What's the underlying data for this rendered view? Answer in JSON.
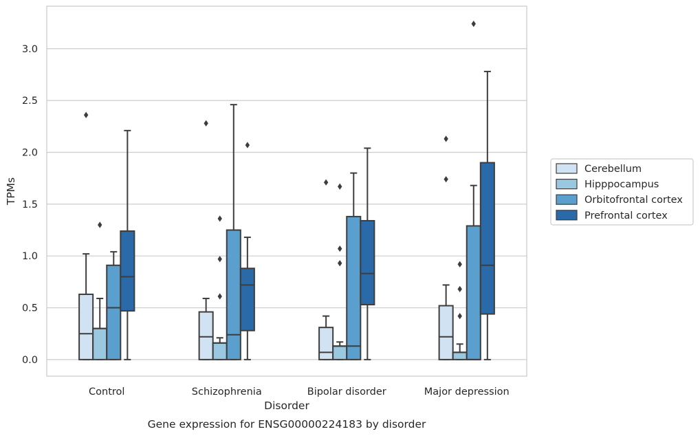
{
  "chart_data": {
    "type": "box",
    "xlabel": "Disorder",
    "ylabel": "TPMs",
    "caption": "Gene expression for ENSG00000224183 by disorder",
    "ylim": [
      -0.16,
      3.41
    ],
    "y_ticks": [
      {
        "value": 0.0,
        "label": "0.0"
      },
      {
        "value": 0.5,
        "label": "0.5"
      },
      {
        "value": 1.0,
        "label": "1.0"
      },
      {
        "value": 1.5,
        "label": "1.5"
      },
      {
        "value": 2.0,
        "label": "2.0"
      },
      {
        "value": 2.5,
        "label": "2.5"
      },
      {
        "value": 3.0,
        "label": "3.0"
      }
    ],
    "grid": "horizontal",
    "legend_position": "right",
    "categories": [
      "Control",
      "Schizophrenia",
      "Bipolar disorder",
      "Major depression"
    ],
    "series": [
      {
        "name": "Cerebellum",
        "color": "#d1e2f2",
        "boxes": [
          {
            "whislo": 0.0,
            "q1": 0.0,
            "med": 0.25,
            "q3": 0.63,
            "whishi": 1.02,
            "fliers": [
              2.36
            ]
          },
          {
            "whislo": 0.0,
            "q1": 0.0,
            "med": 0.22,
            "q3": 0.46,
            "whishi": 0.59,
            "fliers": [
              2.28
            ]
          },
          {
            "whislo": 0.0,
            "q1": 0.0,
            "med": 0.07,
            "q3": 0.31,
            "whishi": 0.42,
            "fliers": [
              1.71
            ]
          },
          {
            "whislo": 0.0,
            "q1": 0.0,
            "med": 0.22,
            "q3": 0.52,
            "whishi": 0.72,
            "fliers": [
              2.13,
              1.74
            ]
          }
        ]
      },
      {
        "name": "Hipppocampus",
        "color": "#9ac8e0",
        "boxes": [
          {
            "whislo": 0.0,
            "q1": 0.0,
            "med": 0.3,
            "q3": 0.3,
            "whishi": 0.59,
            "fliers": [
              1.3
            ]
          },
          {
            "whislo": 0.0,
            "q1": 0.0,
            "med": 0.16,
            "q3": 0.16,
            "whishi": 0.21,
            "fliers": [
              1.36,
              0.97,
              0.61
            ]
          },
          {
            "whislo": 0.0,
            "q1": 0.0,
            "med": 0.13,
            "q3": 0.13,
            "whishi": 0.17,
            "fliers": [
              1.67,
              1.07,
              0.93
            ]
          },
          {
            "whislo": 0.0,
            "q1": 0.0,
            "med": 0.07,
            "q3": 0.07,
            "whishi": 0.15,
            "fliers": [
              0.92,
              0.68,
              0.42
            ]
          }
        ]
      },
      {
        "name": "Orbitofrontal cortex",
        "color": "#5a9fcd",
        "boxes": [
          {
            "whislo": 0.0,
            "q1": 0.0,
            "med": 0.5,
            "q3": 0.91,
            "whishi": 1.04,
            "fliers": []
          },
          {
            "whislo": 0.0,
            "q1": 0.0,
            "med": 0.24,
            "q3": 1.25,
            "whishi": 2.46,
            "fliers": []
          },
          {
            "whislo": 0.0,
            "q1": 0.0,
            "med": 0.13,
            "q3": 1.38,
            "whishi": 1.8,
            "fliers": []
          },
          {
            "whislo": 0.0,
            "q1": 0.0,
            "med": 0.0,
            "q3": 1.29,
            "whishi": 1.68,
            "fliers": [
              3.24
            ]
          }
        ]
      },
      {
        "name": "Prefrontal cortex",
        "color": "#2b6aa9",
        "boxes": [
          {
            "whislo": 0.0,
            "q1": 0.47,
            "med": 0.8,
            "q3": 1.24,
            "whishi": 2.21,
            "fliers": []
          },
          {
            "whislo": 0.0,
            "q1": 0.28,
            "med": 0.72,
            "q3": 0.88,
            "whishi": 1.18,
            "fliers": [
              2.07
            ]
          },
          {
            "whislo": 0.0,
            "q1": 0.53,
            "med": 0.83,
            "q3": 1.34,
            "whishi": 2.04,
            "fliers": []
          },
          {
            "whislo": 0.0,
            "q1": 0.44,
            "med": 0.91,
            "q3": 1.9,
            "whishi": 2.78,
            "fliers": []
          }
        ]
      }
    ]
  }
}
